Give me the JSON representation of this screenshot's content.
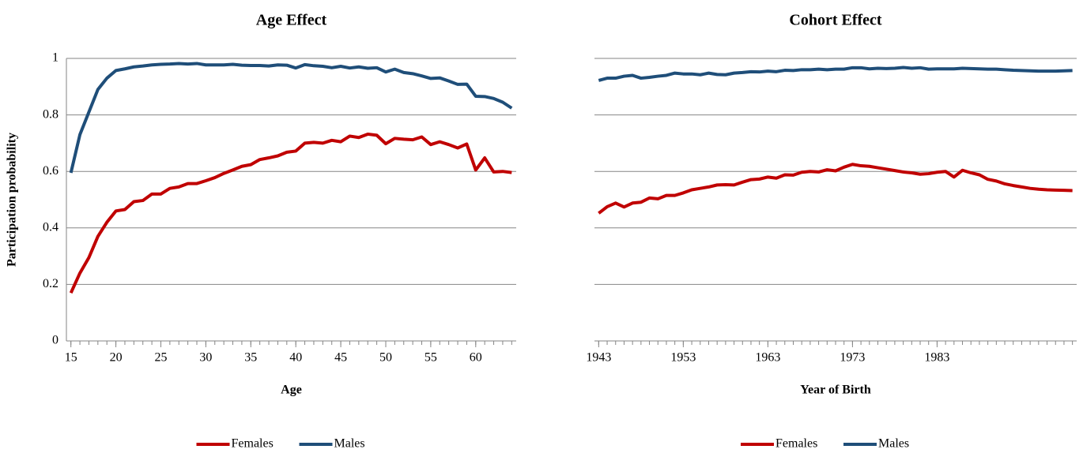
{
  "chart_data": [
    {
      "type": "line",
      "title": "Age Effect",
      "x_label": "Age",
      "y_label": "Participation probability",
      "x": [
        15,
        16,
        17,
        18,
        19,
        20,
        21,
        22,
        23,
        24,
        25,
        26,
        27,
        28,
        29,
        30,
        31,
        32,
        33,
        34,
        35,
        36,
        37,
        38,
        39,
        40,
        41,
        42,
        43,
        44,
        45,
        46,
        47,
        48,
        49,
        50,
        51,
        52,
        53,
        54,
        55,
        56,
        57,
        58,
        59,
        60,
        61,
        62,
        63,
        64
      ],
      "series": [
        {
          "name": "Females",
          "color": "#c00000",
          "values": [
            0.17,
            0.24,
            0.295,
            0.37,
            0.42,
            0.46,
            0.465,
            0.493,
            0.497,
            0.52,
            0.52,
            0.54,
            0.545,
            0.557,
            0.557,
            0.567,
            0.578,
            0.593,
            0.605,
            0.618,
            0.624,
            0.642,
            0.648,
            0.655,
            0.668,
            0.672,
            0.7,
            0.703,
            0.7,
            0.71,
            0.705,
            0.725,
            0.72,
            0.732,
            0.728,
            0.698,
            0.717,
            0.714,
            0.712,
            0.722,
            0.695,
            0.705,
            0.695,
            0.683,
            0.697,
            0.605,
            0.648,
            0.598,
            0.6,
            0.596
          ]
        },
        {
          "name": "Males",
          "color": "#1f4e79",
          "values": [
            0.595,
            0.73,
            0.81,
            0.89,
            0.93,
            0.957,
            0.963,
            0.97,
            0.973,
            0.977,
            0.979,
            0.98,
            0.982,
            0.98,
            0.982,
            0.977,
            0.977,
            0.977,
            0.979,
            0.976,
            0.975,
            0.975,
            0.973,
            0.977,
            0.976,
            0.966,
            0.978,
            0.974,
            0.972,
            0.967,
            0.972,
            0.966,
            0.97,
            0.965,
            0.967,
            0.952,
            0.962,
            0.95,
            0.946,
            0.938,
            0.929,
            0.931,
            0.92,
            0.908,
            0.909,
            0.866,
            0.865,
            0.858,
            0.845,
            0.824
          ]
        }
      ],
      "xlim": [
        14.5,
        64.5
      ],
      "xticks": [
        15,
        20,
        25,
        30,
        35,
        40,
        45,
        50,
        55,
        60
      ],
      "ylim": [
        0,
        1
      ],
      "yticks": [
        0,
        0.2,
        0.4,
        0.6,
        0.8,
        1
      ],
      "ytick_labels": true,
      "grid": true,
      "legend": "bottom"
    },
    {
      "type": "line",
      "title": "Cohort Effect",
      "x_label": "Year of Birth",
      "x": [
        1943,
        1944,
        1945,
        1946,
        1947,
        1948,
        1949,
        1950,
        1951,
        1952,
        1953,
        1954,
        1955,
        1956,
        1957,
        1958,
        1959,
        1960,
        1961,
        1962,
        1963,
        1964,
        1965,
        1966,
        1967,
        1968,
        1969,
        1970,
        1971,
        1972,
        1973,
        1974,
        1975,
        1976,
        1977,
        1978,
        1979,
        1980,
        1981,
        1982,
        1983,
        1984,
        1985,
        1986,
        1987,
        1988,
        1989,
        1990,
        1991,
        1992,
        1993,
        1994,
        1995,
        1996,
        1997,
        1998,
        1999
      ],
      "series": [
        {
          "name": "Females",
          "color": "#c00000",
          "values": [
            0.452,
            0.475,
            0.488,
            0.474,
            0.488,
            0.491,
            0.506,
            0.503,
            0.515,
            0.515,
            0.524,
            0.535,
            0.54,
            0.545,
            0.552,
            0.553,
            0.552,
            0.562,
            0.571,
            0.573,
            0.58,
            0.576,
            0.588,
            0.587,
            0.597,
            0.6,
            0.598,
            0.606,
            0.602,
            0.615,
            0.625,
            0.62,
            0.618,
            0.613,
            0.608,
            0.603,
            0.598,
            0.595,
            0.59,
            0.592,
            0.597,
            0.6,
            0.58,
            0.604,
            0.595,
            0.588,
            0.572,
            0.566,
            0.556,
            0.55,
            0.545,
            0.54,
            0.537,
            0.535,
            0.534,
            0.533,
            0.532
          ]
        },
        {
          "name": "Males",
          "color": "#1f4e79",
          "values": [
            0.922,
            0.93,
            0.93,
            0.937,
            0.94,
            0.93,
            0.933,
            0.937,
            0.94,
            0.948,
            0.945,
            0.945,
            0.942,
            0.948,
            0.943,
            0.942,
            0.948,
            0.95,
            0.953,
            0.952,
            0.955,
            0.953,
            0.958,
            0.957,
            0.96,
            0.96,
            0.962,
            0.96,
            0.962,
            0.962,
            0.967,
            0.967,
            0.963,
            0.965,
            0.964,
            0.965,
            0.968,
            0.965,
            0.967,
            0.962,
            0.963,
            0.963,
            0.963,
            0.965,
            0.964,
            0.963,
            0.962,
            0.962,
            0.96,
            0.958,
            0.957,
            0.956,
            0.955,
            0.955,
            0.955,
            0.956,
            0.957
          ]
        }
      ],
      "xlim": [
        1942.5,
        1999.5
      ],
      "xticks": [
        1943,
        1953,
        1963,
        1973,
        1983
      ],
      "ylim": [
        0,
        1
      ],
      "yticks": [
        0,
        0.2,
        0.4,
        0.6,
        0.8,
        1
      ],
      "ytick_labels": false,
      "grid": true,
      "legend": "bottom"
    }
  ]
}
